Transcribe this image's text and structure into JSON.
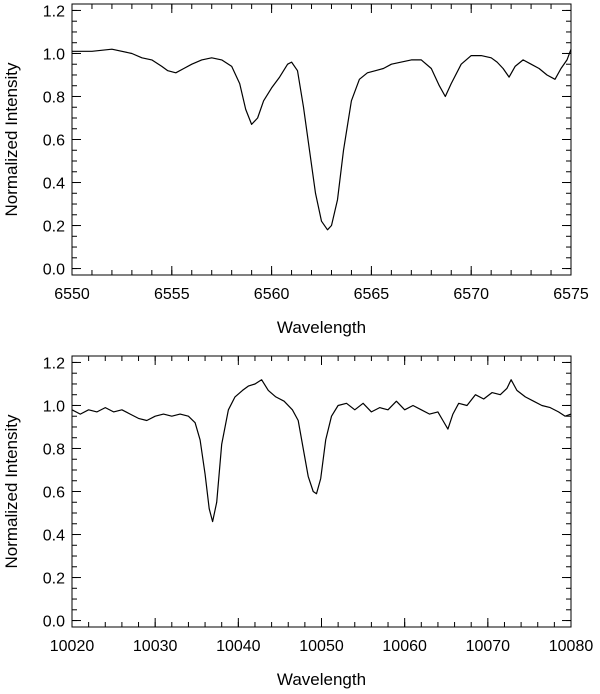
{
  "chart_data": [
    {
      "type": "line",
      "xlabel": "Wavelength",
      "ylabel": "Normalized Intensity",
      "xlim": [
        6550,
        6575
      ],
      "ylim": [
        -0.03,
        1.23
      ],
      "xticks": [
        6550,
        6555,
        6560,
        6565,
        6570,
        6575
      ],
      "yticks": [
        0.0,
        0.2,
        0.4,
        0.6,
        0.8,
        1.0,
        1.2
      ],
      "xtick_labels": [
        "6550",
        "6555",
        "6560",
        "6565",
        "6570",
        "6575"
      ],
      "ytick_labels": [
        "0.0",
        "0.2",
        "0.4",
        "0.6",
        "0.8",
        "1.0",
        "1.2"
      ],
      "grid": false,
      "line_color": "#000000",
      "series": [
        {
          "x": [
            6550.0,
            6551.0,
            6552.0,
            6553.0,
            6553.5,
            6554.0,
            6554.5,
            6554.8,
            6555.2,
            6555.6,
            6556.0,
            6556.5,
            6557.0,
            6557.5,
            6558.0,
            6558.4,
            6558.7,
            6559.0,
            6559.3,
            6559.6,
            6560.0,
            6560.4,
            6560.8,
            6561.0,
            6561.3,
            6561.6,
            6561.9,
            6562.2,
            6562.5,
            6562.8,
            6563.0,
            6563.3,
            6563.6,
            6564.0,
            6564.4,
            6564.8,
            6565.2,
            6565.6,
            6566.0,
            6566.5,
            6567.0,
            6567.5,
            6568.0,
            6568.4,
            6568.7,
            6569.0,
            6569.5,
            6570.0,
            6570.5,
            6571.0,
            6571.3,
            6571.6,
            6571.9,
            6572.2,
            6572.6,
            6573.0,
            6573.4,
            6573.8,
            6574.2,
            6574.5,
            6574.8,
            6575.0
          ],
          "y": [
            1.01,
            1.01,
            1.02,
            1.0,
            0.98,
            0.97,
            0.94,
            0.92,
            0.91,
            0.93,
            0.95,
            0.97,
            0.98,
            0.97,
            0.94,
            0.86,
            0.74,
            0.67,
            0.7,
            0.78,
            0.84,
            0.89,
            0.95,
            0.96,
            0.92,
            0.75,
            0.55,
            0.35,
            0.22,
            0.18,
            0.2,
            0.32,
            0.55,
            0.78,
            0.88,
            0.91,
            0.92,
            0.93,
            0.95,
            0.96,
            0.97,
            0.97,
            0.93,
            0.85,
            0.8,
            0.86,
            0.95,
            0.99,
            0.99,
            0.98,
            0.96,
            0.93,
            0.89,
            0.94,
            0.97,
            0.95,
            0.93,
            0.9,
            0.88,
            0.93,
            0.97,
            1.02
          ]
        }
      ]
    },
    {
      "type": "line",
      "xlabel": "Wavelength",
      "ylabel": "Normalized Intensity",
      "xlim": [
        10020,
        10080
      ],
      "ylim": [
        -0.03,
        1.23
      ],
      "xticks": [
        10020,
        10030,
        10040,
        10050,
        10060,
        10070,
        10080
      ],
      "yticks": [
        0.0,
        0.2,
        0.4,
        0.6,
        0.8,
        1.0,
        1.2
      ],
      "xtick_labels": [
        "10020",
        "10030",
        "10040",
        "10050",
        "10060",
        "10070",
        "10080"
      ],
      "ytick_labels": [
        "0.0",
        "0.2",
        "0.4",
        "0.6",
        "0.8",
        "1.0",
        "1.2"
      ],
      "grid": false,
      "line_color": "#000000",
      "series": [
        {
          "x": [
            10020.0,
            10021.0,
            10022.0,
            10023.0,
            10024.0,
            10025.0,
            10026.0,
            10027.0,
            10028.0,
            10029.0,
            10030.0,
            10031.0,
            10032.0,
            10033.0,
            10034.0,
            10034.8,
            10035.4,
            10036.0,
            10036.5,
            10036.9,
            10037.4,
            10038.0,
            10038.8,
            10039.6,
            10040.5,
            10041.2,
            10042.0,
            10042.8,
            10043.6,
            10044.5,
            10045.5,
            10046.5,
            10047.2,
            10047.8,
            10048.4,
            10049.0,
            10049.4,
            10049.9,
            10050.5,
            10051.2,
            10052.0,
            10053.0,
            10054.0,
            10055.0,
            10056.0,
            10057.0,
            10058.0,
            10059.0,
            10060.0,
            10061.0,
            10062.0,
            10063.0,
            10064.0,
            10064.6,
            10065.2,
            10065.8,
            10066.5,
            10067.5,
            10068.5,
            10069.5,
            10070.5,
            10071.5,
            10072.3,
            10072.8,
            10073.5,
            10074.5,
            10075.5,
            10076.5,
            10077.5,
            10078.5,
            10079.3,
            10080.0
          ],
          "y": [
            0.98,
            0.96,
            0.98,
            0.97,
            0.99,
            0.97,
            0.98,
            0.96,
            0.94,
            0.93,
            0.95,
            0.96,
            0.95,
            0.96,
            0.95,
            0.92,
            0.84,
            0.68,
            0.52,
            0.46,
            0.55,
            0.82,
            0.98,
            1.04,
            1.07,
            1.09,
            1.1,
            1.12,
            1.07,
            1.04,
            1.02,
            0.98,
            0.93,
            0.8,
            0.67,
            0.6,
            0.59,
            0.66,
            0.84,
            0.95,
            1.0,
            1.01,
            0.98,
            1.01,
            0.97,
            0.99,
            0.98,
            1.02,
            0.98,
            1.0,
            0.98,
            0.96,
            0.97,
            0.93,
            0.89,
            0.96,
            1.01,
            1.0,
            1.05,
            1.03,
            1.06,
            1.05,
            1.08,
            1.12,
            1.07,
            1.04,
            1.02,
            1.0,
            0.99,
            0.97,
            0.95,
            0.96
          ]
        }
      ]
    }
  ]
}
